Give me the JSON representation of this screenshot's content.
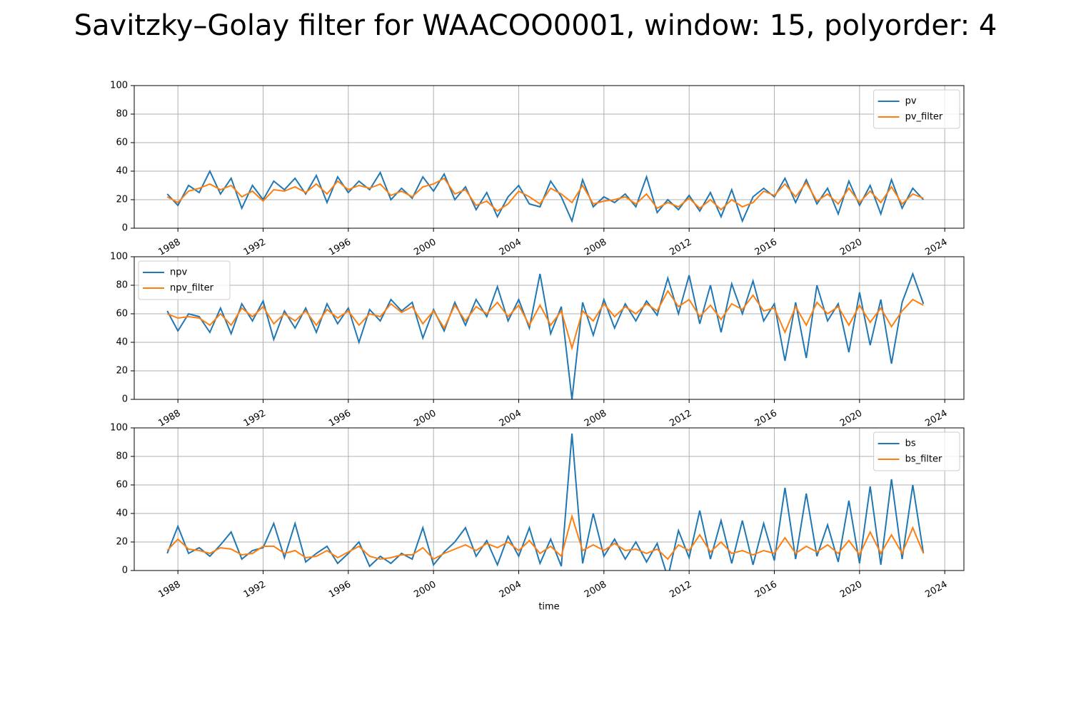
{
  "title": "Savitzky–Golay filter for WAACOO0001, window: 15, polyorder: 4",
  "chart_data": [
    {
      "type": "line",
      "legend": "upper right",
      "grid": true,
      "xlim": [
        1985.95,
        2024.9
      ],
      "xticks": [
        1988,
        1992,
        1996,
        2000,
        2004,
        2008,
        2012,
        2016,
        2020,
        2024
      ],
      "ylim": [
        0,
        100
      ],
      "yticks": [
        0,
        20,
        40,
        60,
        80,
        100
      ],
      "x": [
        1987.5,
        1988,
        1988.5,
        1989,
        1989.5,
        1990,
        1990.5,
        1991,
        1991.5,
        1992,
        1992.5,
        1993,
        1993.5,
        1994,
        1994.5,
        1995,
        1995.5,
        1996,
        1996.5,
        1997,
        1997.5,
        1998,
        1998.5,
        1999,
        1999.5,
        2000,
        2000.5,
        2001,
        2001.5,
        2002,
        2002.5,
        2003,
        2003.5,
        2004,
        2004.5,
        2005,
        2005.5,
        2006,
        2006.5,
        2007,
        2007.5,
        2008,
        2008.5,
        2009,
        2009.5,
        2010,
        2010.5,
        2011,
        2011.5,
        2012,
        2012.5,
        2013,
        2013.5,
        2014,
        2014.5,
        2015,
        2015.5,
        2016,
        2016.5,
        2017,
        2017.5,
        2018,
        2018.5,
        2019,
        2019.5,
        2020,
        2020.5,
        2021,
        2021.5,
        2022,
        2022.5,
        2023
      ],
      "series": [
        {
          "name": "pv",
          "color": "#1f77b4",
          "values": [
            24,
            16,
            30,
            25,
            40,
            24,
            35,
            14,
            30,
            20,
            33,
            27,
            35,
            24,
            37,
            18,
            36,
            25,
            33,
            27,
            39,
            20,
            28,
            21,
            36,
            26,
            38,
            20,
            29,
            13,
            25,
            8,
            22,
            30,
            17,
            15,
            33,
            22,
            5,
            34,
            15,
            22,
            18,
            24,
            15,
            36,
            11,
            20,
            13,
            23,
            12,
            25,
            8,
            27,
            5,
            22,
            28,
            22,
            35,
            18,
            34,
            17,
            28,
            10,
            33,
            16,
            30,
            10,
            34,
            14,
            28,
            20
          ]
        },
        {
          "name": "pv_filter",
          "color": "#ff7f0e",
          "values": [
            22,
            18,
            26,
            28,
            31,
            27,
            30,
            22,
            26,
            19,
            27,
            26,
            29,
            25,
            31,
            24,
            33,
            27,
            30,
            28,
            31,
            23,
            26,
            22,
            29,
            31,
            35,
            24,
            27,
            16,
            19,
            12,
            17,
            26,
            22,
            17,
            28,
            24,
            18,
            30,
            17,
            19,
            20,
            22,
            17,
            24,
            14,
            18,
            15,
            21,
            14,
            20,
            13,
            20,
            15,
            18,
            26,
            23,
            31,
            22,
            32,
            19,
            24,
            17,
            28,
            18,
            26,
            18,
            29,
            17,
            24,
            21
          ]
        }
      ]
    },
    {
      "type": "line",
      "legend": "upper left",
      "grid": true,
      "xlim": [
        1985.95,
        2024.9
      ],
      "xticks": [
        1988,
        1992,
        1996,
        2000,
        2004,
        2008,
        2012,
        2016,
        2020,
        2024
      ],
      "ylim": [
        0,
        100
      ],
      "yticks": [
        0,
        20,
        40,
        60,
        80,
        100
      ],
      "x": [
        1987.5,
        1988,
        1988.5,
        1989,
        1989.5,
        1990,
        1990.5,
        1991,
        1991.5,
        1992,
        1992.5,
        1993,
        1993.5,
        1994,
        1994.5,
        1995,
        1995.5,
        1996,
        1996.5,
        1997,
        1997.5,
        1998,
        1998.5,
        1999,
        1999.5,
        2000,
        2000.5,
        2001,
        2001.5,
        2002,
        2002.5,
        2003,
        2003.5,
        2004,
        2004.5,
        2005,
        2005.5,
        2006,
        2006.5,
        2007,
        2007.5,
        2008,
        2008.5,
        2009,
        2009.5,
        2010,
        2010.5,
        2011,
        2011.5,
        2012,
        2012.5,
        2013,
        2013.5,
        2014,
        2014.5,
        2015,
        2015.5,
        2016,
        2016.5,
        2017,
        2017.5,
        2018,
        2018.5,
        2019,
        2019.5,
        2020,
        2020.5,
        2021,
        2021.5,
        2022,
        2022.5,
        2023
      ],
      "series": [
        {
          "name": "npv",
          "color": "#1f77b4",
          "values": [
            62,
            48,
            60,
            58,
            47,
            64,
            46,
            67,
            55,
            69,
            42,
            62,
            50,
            64,
            47,
            67,
            53,
            64,
            40,
            63,
            55,
            70,
            62,
            68,
            43,
            63,
            48,
            68,
            52,
            70,
            58,
            79,
            55,
            70,
            50,
            88,
            46,
            65,
            0,
            68,
            45,
            70,
            50,
            67,
            55,
            69,
            59,
            85,
            60,
            87,
            53,
            80,
            47,
            81,
            60,
            83,
            55,
            67,
            27,
            68,
            29,
            80,
            55,
            67,
            33,
            75,
            38,
            70,
            25,
            68,
            88,
            67
          ]
        },
        {
          "name": "npv_filter",
          "color": "#ff7f0e",
          "values": [
            60,
            57,
            58,
            57,
            52,
            60,
            52,
            64,
            58,
            65,
            53,
            60,
            55,
            62,
            52,
            63,
            57,
            62,
            52,
            60,
            58,
            67,
            61,
            65,
            53,
            62,
            50,
            66,
            55,
            65,
            60,
            68,
            58,
            66,
            52,
            66,
            52,
            62,
            36,
            62,
            55,
            67,
            58,
            65,
            60,
            67,
            62,
            76,
            65,
            70,
            58,
            66,
            56,
            67,
            63,
            73,
            62,
            64,
            47,
            65,
            52,
            68,
            60,
            65,
            52,
            66,
            54,
            64,
            51,
            62,
            70,
            66
          ]
        }
      ]
    },
    {
      "type": "line",
      "legend": "upper right",
      "grid": true,
      "xlabel": "time",
      "xlim": [
        1985.95,
        2024.9
      ],
      "xticks": [
        1988,
        1992,
        1996,
        2000,
        2004,
        2008,
        2012,
        2016,
        2020,
        2024
      ],
      "ylim": [
        0,
        100
      ],
      "yticks": [
        0,
        20,
        40,
        60,
        80,
        100
      ],
      "x": [
        1987.5,
        1988,
        1988.5,
        1989,
        1989.5,
        1990,
        1990.5,
        1991,
        1991.5,
        1992,
        1992.5,
        1993,
        1993.5,
        1994,
        1994.5,
        1995,
        1995.5,
        1996,
        1996.5,
        1997,
        1997.5,
        1998,
        1998.5,
        1999,
        1999.5,
        2000,
        2000.5,
        2001,
        2001.5,
        2002,
        2002.5,
        2003,
        2003.5,
        2004,
        2004.5,
        2005,
        2005.5,
        2006,
        2006.5,
        2007,
        2007.5,
        2008,
        2008.5,
        2009,
        2009.5,
        2010,
        2010.5,
        2011,
        2011.5,
        2012,
        2012.5,
        2013,
        2013.5,
        2014,
        2014.5,
        2015,
        2015.5,
        2016,
        2016.5,
        2017,
        2017.5,
        2018,
        2018.5,
        2019,
        2019.5,
        2020,
        2020.5,
        2021,
        2021.5,
        2022,
        2022.5,
        2023
      ],
      "series": [
        {
          "name": "bs",
          "color": "#1f77b4",
          "values": [
            12,
            31,
            12,
            16,
            10,
            18,
            27,
            8,
            14,
            16,
            33,
            9,
            33,
            6,
            12,
            17,
            5,
            12,
            20,
            3,
            10,
            5,
            12,
            8,
            30,
            4,
            13,
            20,
            30,
            10,
            21,
            4,
            24,
            10,
            30,
            5,
            22,
            3,
            96,
            5,
            40,
            10,
            22,
            8,
            20,
            6,
            19,
            -5,
            28,
            9,
            42,
            8,
            35,
            5,
            35,
            4,
            33,
            7,
            58,
            8,
            54,
            10,
            32,
            6,
            49,
            5,
            59,
            4,
            64,
            8,
            60,
            12
          ]
        },
        {
          "name": "bs_filter",
          "color": "#ff7f0e",
          "values": [
            14,
            22,
            15,
            14,
            12,
            16,
            15,
            11,
            12,
            17,
            17,
            12,
            14,
            9,
            10,
            14,
            9,
            13,
            17,
            10,
            8,
            9,
            11,
            11,
            16,
            8,
            12,
            15,
            18,
            14,
            19,
            16,
            20,
            14,
            21,
            12,
            17,
            10,
            38,
            14,
            18,
            14,
            19,
            14,
            15,
            12,
            15,
            8,
            18,
            14,
            25,
            13,
            20,
            12,
            14,
            11,
            14,
            12,
            23,
            12,
            17,
            13,
            18,
            12,
            21,
            11,
            27,
            12,
            25,
            12,
            30,
            12
          ]
        }
      ]
    }
  ]
}
